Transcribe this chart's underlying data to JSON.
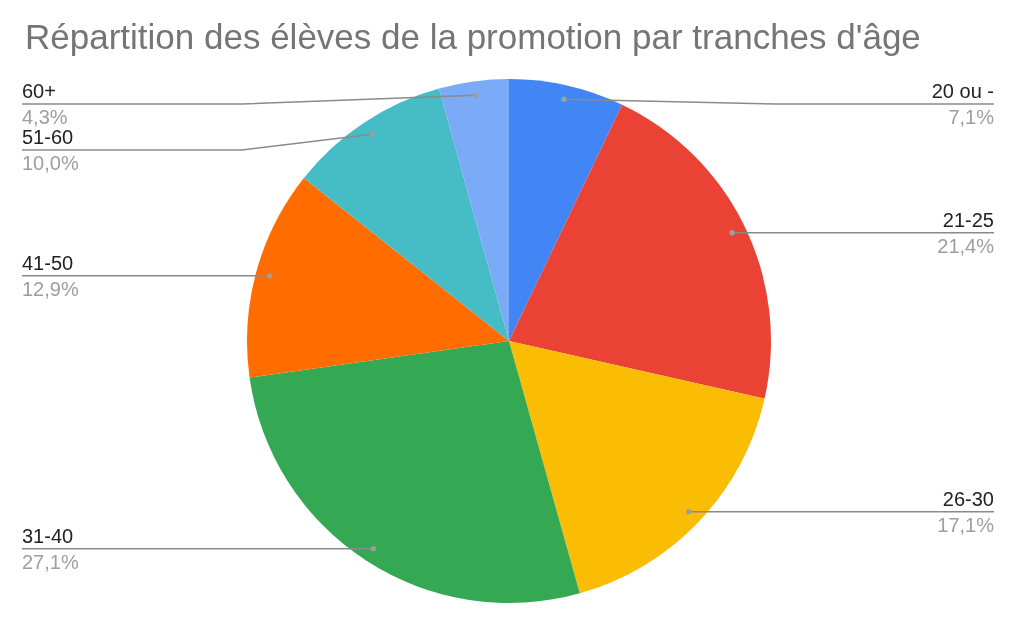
{
  "chart_data": {
    "type": "pie",
    "title": "Répartition des élèves de la promotion par tranches d'âge",
    "categories": [
      "20 ou -",
      "21-25",
      "26-30",
      "31-40",
      "41-50",
      "51-60",
      "60+"
    ],
    "values": [
      7.1,
      21.4,
      17.1,
      27.1,
      12.9,
      10.0,
      4.3
    ],
    "colors": [
      "#4285f4",
      "#ea4335",
      "#fbbc04",
      "#34a853",
      "#ff6d01",
      "#46bdc6",
      "#7baaf7"
    ],
    "value_labels": [
      "7,1%",
      "21,4%",
      "17,1%",
      "27,1%",
      "12,9%",
      "10,0%",
      "4,3%"
    ]
  }
}
